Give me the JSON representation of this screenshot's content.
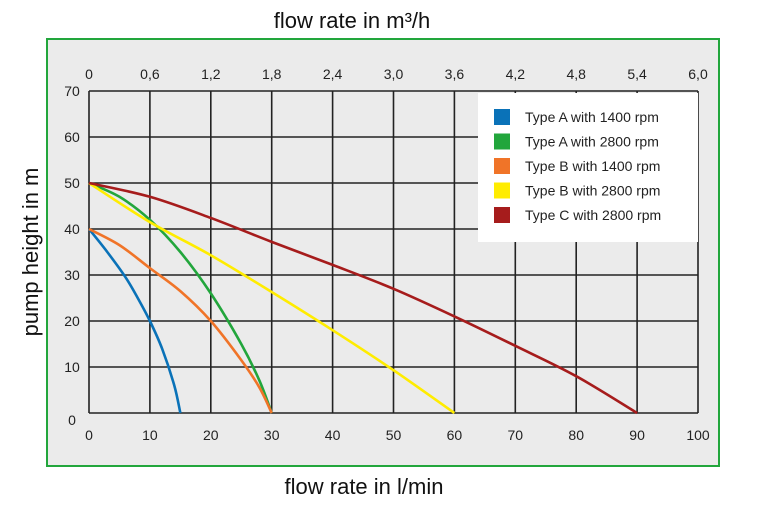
{
  "chart_data": {
    "type": "line",
    "title": "flow rate in m³/h",
    "xlabel": "flow rate in l/min",
    "ylabel": "pump height in m",
    "xlim": [
      0,
      100
    ],
    "ylim": [
      0,
      70
    ],
    "x_ticks": [
      "0",
      "10",
      "20",
      "30",
      "40",
      "50",
      "60",
      "70",
      "80",
      "90",
      "100"
    ],
    "x2_ticks": [
      "0",
      "0,6",
      "1,2",
      "1,8",
      "2,4",
      "3,0",
      "3,6",
      "4,2",
      "4,8",
      "5,4",
      "6,0"
    ],
    "y_ticks": [
      "0",
      "10",
      "20",
      "30",
      "40",
      "50",
      "60",
      "70"
    ],
    "grid": true,
    "legend_position": "top-right",
    "series": [
      {
        "name": "Type A with 1400 rpm",
        "color": "#0a72b8",
        "points": [
          [
            0,
            40
          ],
          [
            3,
            35
          ],
          [
            6,
            29.5
          ],
          [
            8,
            25
          ],
          [
            10,
            20
          ],
          [
            12,
            14
          ],
          [
            14,
            6
          ],
          [
            15,
            0
          ]
        ]
      },
      {
        "name": "Type A with 2800 rpm",
        "color": "#22a63c",
        "points": [
          [
            0,
            50
          ],
          [
            5,
            47
          ],
          [
            10,
            42
          ],
          [
            15,
            35
          ],
          [
            20,
            26
          ],
          [
            25,
            15
          ],
          [
            28,
            7
          ],
          [
            30,
            0
          ]
        ]
      },
      {
        "name": "Type B with 1400 rpm",
        "color": "#f07428",
        "points": [
          [
            0,
            40
          ],
          [
            5,
            36.5
          ],
          [
            10,
            31.5
          ],
          [
            15,
            26.5
          ],
          [
            20,
            20
          ],
          [
            25,
            11.5
          ],
          [
            28,
            5.5
          ],
          [
            30,
            0
          ]
        ]
      },
      {
        "name": "Type B with 2800 rpm",
        "color": "#ffec00",
        "points": [
          [
            0,
            50
          ],
          [
            10,
            41.5
          ],
          [
            20,
            34.3
          ],
          [
            30,
            26.3
          ],
          [
            40,
            18
          ],
          [
            50,
            9.3
          ],
          [
            60,
            0
          ]
        ]
      },
      {
        "name": "Type C with 2800 rpm",
        "color": "#a61c1c",
        "points": [
          [
            0,
            50
          ],
          [
            10,
            47
          ],
          [
            20,
            42.4
          ],
          [
            30,
            37.2
          ],
          [
            40,
            32.2
          ],
          [
            50,
            27
          ],
          [
            60,
            21
          ],
          [
            70,
            14.6
          ],
          [
            80,
            8
          ],
          [
            90,
            0
          ]
        ]
      }
    ]
  },
  "colors": {
    "frame": "#22a63c",
    "plot_bg": "#ebebeb",
    "grid": "#222222"
  }
}
